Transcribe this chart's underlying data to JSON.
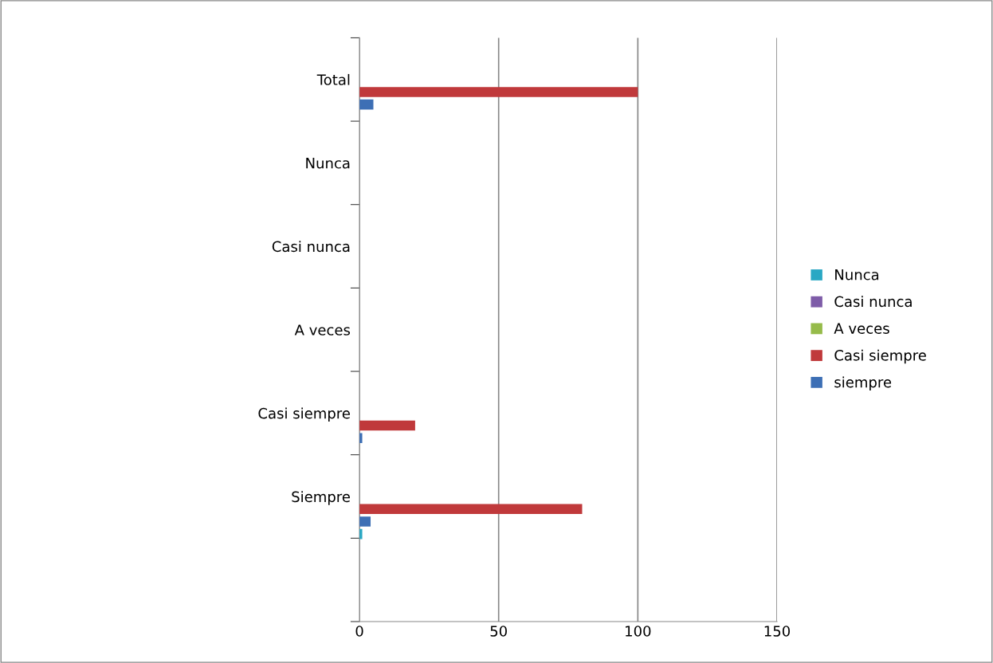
{
  "chart_data": {
    "type": "bar",
    "orientation": "horizontal",
    "categories": [
      "Total",
      "Nunca",
      "Casi nunca",
      "A veces",
      "Casi siempre",
      "Siempre",
      null
    ],
    "series": [
      {
        "name": "Nunca",
        "color": "#2aa8c4",
        "values": [
          null,
          null,
          null,
          null,
          null,
          1,
          null
        ]
      },
      {
        "name": "Casi nunca",
        "color": "#7e5ca8",
        "values": [
          null,
          null,
          null,
          null,
          null,
          null,
          null
        ]
      },
      {
        "name": "A veces",
        "color": "#96bb4a",
        "values": [
          null,
          null,
          null,
          null,
          null,
          null,
          null
        ]
      },
      {
        "name": "Casi siempre",
        "color": "#c0393b",
        "values": [
          100,
          null,
          null,
          null,
          20,
          80,
          null
        ]
      },
      {
        "name": "siempre",
        "color": "#3d6fb5",
        "values": [
          5,
          null,
          null,
          null,
          1,
          4,
          null
        ]
      }
    ],
    "xlim": [
      0,
      150
    ],
    "xticks": [
      0,
      50,
      100,
      150
    ],
    "grid": "x",
    "legend": "right"
  }
}
